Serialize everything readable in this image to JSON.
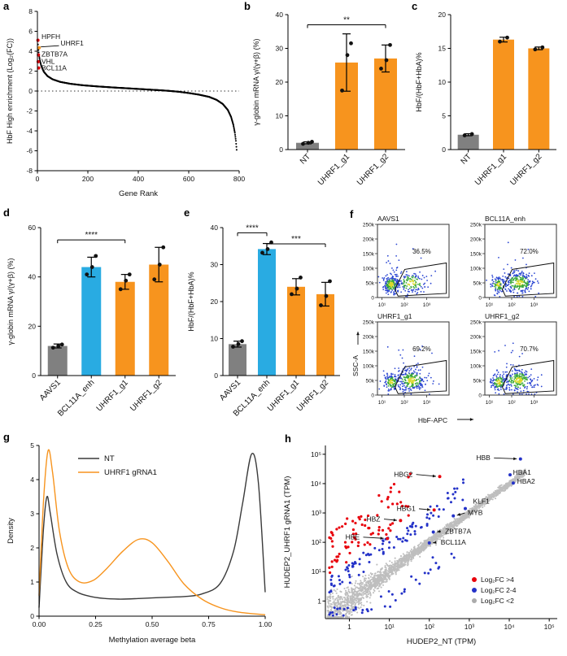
{
  "panel_letters": {
    "a": "a",
    "b": "b",
    "c": "c",
    "d": "d",
    "e": "e",
    "f": "f",
    "g": "g",
    "h": "h"
  },
  "colors": {
    "orange": "#F7941E",
    "blue_bar": "#29ABE2",
    "gray_bar": "#808080",
    "red_point": "#E8000B",
    "blue_point": "#2432C8",
    "gray_point": "#BEBEBE"
  },
  "chart_data": [
    {
      "id": "a",
      "type": "scatter",
      "subtype": "gene-rank",
      "xlabel": "Gene Rank",
      "ylabel": "HbF High enrichment (Log₂(FC))",
      "xlim": [
        0,
        800
      ],
      "ylim": [
        -8,
        8
      ],
      "xticks": [
        0,
        200,
        400,
        600,
        800
      ],
      "yticks": [
        -8,
        -6,
        -4,
        -2,
        0,
        2,
        4,
        6,
        8
      ],
      "zero_line": 0,
      "n_genes": 790,
      "curve_points": [
        [
          1,
          5.0
        ],
        [
          3,
          4.35
        ],
        [
          6,
          3.65
        ],
        [
          10,
          3.05
        ],
        [
          15,
          2.55
        ],
        [
          25,
          1.95
        ],
        [
          40,
          1.5
        ],
        [
          60,
          1.18
        ],
        [
          90,
          0.92
        ],
        [
          130,
          0.73
        ],
        [
          180,
          0.58
        ],
        [
          240,
          0.46
        ],
        [
          300,
          0.36
        ],
        [
          360,
          0.27
        ],
        [
          420,
          0.18
        ],
        [
          480,
          0.09
        ],
        [
          520,
          0.02
        ],
        [
          560,
          -0.07
        ],
        [
          600,
          -0.2
        ],
        [
          640,
          -0.36
        ],
        [
          680,
          -0.58
        ],
        [
          710,
          -0.88
        ],
        [
          735,
          -1.3
        ],
        [
          755,
          -1.9
        ],
        [
          768,
          -2.6
        ],
        [
          777,
          -3.4
        ],
        [
          783,
          -4.2
        ],
        [
          787,
          -5.0
        ],
        [
          790,
          -5.9
        ]
      ],
      "highlight_genes": [
        {
          "label": "HPFH",
          "x": 2,
          "y": 5.1,
          "label_x": 16,
          "label_y": 5.45,
          "color": "#E8000B",
          "leader": false
        },
        {
          "label": "UHRF1",
          "x": 7,
          "y": 4.35,
          "label_x": 92,
          "label_y": 4.8,
          "color": "#F7941E",
          "leader": true
        },
        {
          "label": "ZBTB7A",
          "x": 4,
          "y": 3.62,
          "label_x": 16,
          "label_y": 3.72,
          "color": "#E8000B",
          "leader": false
        },
        {
          "label": "VHL",
          "x": 3,
          "y": 2.95,
          "label_x": 16,
          "label_y": 3.0,
          "color": "#E8000B",
          "leader": false
        },
        {
          "label": "BCL11A",
          "x": 5,
          "y": 2.32,
          "label_x": 16,
          "label_y": 2.32,
          "color": "#E8000B",
          "leader": false
        }
      ]
    },
    {
      "id": "b",
      "type": "bar",
      "ylabel": "γ-globin mRNA γ/(γ+β) (%)",
      "ylim": [
        0,
        40
      ],
      "yticks": [
        0,
        10,
        20,
        30,
        40
      ],
      "categories": [
        "NT",
        "UHRF1_g1",
        "UHRF1_g2"
      ],
      "values": [
        2.0,
        25.8,
        27.0
      ],
      "errors": [
        0.3,
        8.5,
        4.0
      ],
      "bar_colors": [
        "gray_bar",
        "orange",
        "orange"
      ],
      "points": [
        [
          1.7,
          2.0,
          2.3
        ],
        [
          17.5,
          28.0,
          31.5
        ],
        [
          24.0,
          26.5,
          31.0
        ]
      ],
      "sig": [
        {
          "from": 0,
          "to": 2,
          "y": 37,
          "label": "**"
        }
      ]
    },
    {
      "id": "c",
      "type": "bar",
      "ylabel": "HbF/(HbF+HbA)%",
      "ylim": [
        0,
        20
      ],
      "yticks": [
        0,
        5,
        10,
        15,
        20
      ],
      "categories": [
        "NT",
        "UHRF1_g1",
        "UHRF1_g2"
      ],
      "values": [
        2.2,
        16.3,
        15.0
      ],
      "errors": [
        0.15,
        0.35,
        0.2
      ],
      "bar_colors": [
        "gray_bar",
        "orange",
        "orange"
      ],
      "points": [
        [
          2.1,
          2.3
        ],
        [
          16.0,
          16.6
        ],
        [
          14.85,
          15.15
        ]
      ],
      "sig": []
    },
    {
      "id": "d",
      "type": "bar",
      "ylabel": "γ-globin mRNA γ/(γ+β) (%)",
      "ylim": [
        0,
        60
      ],
      "yticks": [
        0,
        20,
        40,
        60
      ],
      "categories": [
        "AAVS1",
        "BCL11A_enh",
        "UHRF1_g1",
        "UHRF1_g2"
      ],
      "values": [
        12.0,
        44.0,
        38.0,
        45.0
      ],
      "errors": [
        0.8,
        4.0,
        3.0,
        7.0
      ],
      "bar_colors": [
        "gray_bar",
        "blue_bar",
        "orange",
        "orange"
      ],
      "points": [
        [
          11.3,
          12.0,
          12.6
        ],
        [
          41.0,
          44.0,
          48.5
        ],
        [
          35.0,
          38.5,
          41.0
        ],
        [
          39.0,
          45.0,
          52.0
        ]
      ],
      "sig": [
        {
          "from": 0,
          "to": 2,
          "y": 55,
          "label": "****"
        }
      ]
    },
    {
      "id": "e",
      "type": "bar",
      "ylabel": "HbF/(HbF+HbA)%",
      "ylim": [
        0,
        40
      ],
      "yticks": [
        0,
        10,
        20,
        30,
        40
      ],
      "categories": [
        "AAVS1",
        "BCL11A_enh",
        "UHRF1_g1",
        "UHRF1_g2"
      ],
      "values": [
        8.5,
        34.2,
        24.0,
        22.0
      ],
      "errors": [
        0.8,
        1.5,
        2.2,
        3.2
      ],
      "bar_colors": [
        "gray_bar",
        "blue_bar",
        "orange",
        "orange"
      ],
      "points": [
        [
          7.8,
          8.5,
          9.3
        ],
        [
          33.2,
          34.2,
          36.0
        ],
        [
          22.0,
          23.5,
          26.5
        ],
        [
          19.0,
          21.5,
          25.5
        ]
      ],
      "sig": [
        {
          "from": 0,
          "to": 1,
          "y": 38.6,
          "label": "****"
        },
        {
          "from": 1,
          "to": 3,
          "y": 35.6,
          "label": "***"
        }
      ]
    },
    {
      "id": "f",
      "type": "flow",
      "xlabel": "HbF-APC",
      "ylabel": "SSC-A",
      "xlog_range": [
        0.8,
        4.0
      ],
      "xticks": [
        {
          "v": 1,
          "label": "10¹"
        },
        {
          "v": 2,
          "label": "10²"
        },
        {
          "v": 3,
          "label": "10³"
        }
      ],
      "ylim": [
        0,
        250000
      ],
      "yticks": [
        {
          "v": 0,
          "label": "0"
        },
        {
          "v": 50000,
          "label": "50k"
        },
        {
          "v": 100000,
          "label": "100k"
        },
        {
          "v": 150000,
          "label": "150k"
        },
        {
          "v": 200000,
          "label": "200k"
        },
        {
          "v": 250000,
          "label": "250k"
        }
      ],
      "gate": [
        [
          1.72,
          5000
        ],
        [
          3.88,
          14000
        ],
        [
          3.88,
          118000
        ],
        [
          2.02,
          96000
        ],
        [
          1.58,
          28000
        ]
      ],
      "flow_colors": {
        "core": "#d9d92c",
        "mid": "#3aa83a",
        "outer": "#2b46d2"
      },
      "plots": [
        {
          "title": "AAVS1",
          "pct": "36.5%",
          "pct_pos": [
            2.78,
            150000
          ],
          "positive_frac": 0.365,
          "seed": 11
        },
        {
          "title": "BCL11A_enh",
          "pct": "72.0%",
          "pct_pos": [
            2.78,
            150000
          ],
          "positive_frac": 0.72,
          "seed": 22
        },
        {
          "title": "UHRF1_g1",
          "pct": "69.2%",
          "pct_pos": [
            2.78,
            150000
          ],
          "positive_frac": 0.692,
          "seed": 33
        },
        {
          "title": "UHRF1_g2",
          "pct": "70.7%",
          "pct_pos": [
            2.78,
            150000
          ],
          "positive_frac": 0.707,
          "seed": 44
        }
      ]
    },
    {
      "id": "g",
      "type": "density",
      "xlabel": "Methylation average beta",
      "ylabel": "Density",
      "xlim": [
        0,
        1
      ],
      "ylim": [
        0,
        5
      ],
      "yticks": [
        0,
        1,
        2,
        3,
        4,
        5
      ],
      "xticks": [
        {
          "v": 0,
          "label": "0.00"
        },
        {
          "v": 0.25,
          "label": "0.25"
        },
        {
          "v": 0.5,
          "label": "0.50"
        },
        {
          "v": 0.75,
          "label": "0.75"
        },
        {
          "v": 1,
          "label": "1.00"
        }
      ],
      "series": [
        {
          "name": "NT",
          "color": "#3A3A3A",
          "points": [
            [
              0,
              0.25
            ],
            [
              0.02,
              2.6
            ],
            [
              0.035,
              3.5
            ],
            [
              0.05,
              3.0
            ],
            [
              0.08,
              1.8
            ],
            [
              0.12,
              1.0
            ],
            [
              0.17,
              0.7
            ],
            [
              0.25,
              0.55
            ],
            [
              0.35,
              0.5
            ],
            [
              0.45,
              0.52
            ],
            [
              0.55,
              0.55
            ],
            [
              0.65,
              0.58
            ],
            [
              0.72,
              0.65
            ],
            [
              0.8,
              0.95
            ],
            [
              0.86,
              1.9
            ],
            [
              0.9,
              3.3
            ],
            [
              0.94,
              4.75
            ],
            [
              0.97,
              3.9
            ],
            [
              1.0,
              0.7
            ]
          ]
        },
        {
          "name": "UHRF1 gRNA1",
          "color": "#F7941E",
          "points": [
            [
              0,
              0.6
            ],
            [
              0.02,
              3.4
            ],
            [
              0.04,
              4.85
            ],
            [
              0.06,
              4.2
            ],
            [
              0.09,
              2.5
            ],
            [
              0.13,
              1.4
            ],
            [
              0.18,
              1.0
            ],
            [
              0.24,
              1.05
            ],
            [
              0.3,
              1.4
            ],
            [
              0.37,
              1.9
            ],
            [
              0.44,
              2.25
            ],
            [
              0.5,
              2.15
            ],
            [
              0.57,
              1.6
            ],
            [
              0.64,
              0.95
            ],
            [
              0.72,
              0.5
            ],
            [
              0.8,
              0.25
            ],
            [
              0.88,
              0.12
            ],
            [
              1.0,
              0.04
            ]
          ]
        }
      ]
    },
    {
      "id": "h",
      "type": "scatter-loglog",
      "xlabel": "HUDEP2_NT (TPM)",
      "ylabel": "HUDEP2_UHRF1 gRNA1 (TPM)",
      "log_range": [
        -0.6,
        5.2
      ],
      "ticks": [
        {
          "v": 0,
          "label": "1"
        },
        {
          "v": 1,
          "label": "10¹"
        },
        {
          "v": 2,
          "label": "10²"
        },
        {
          "v": 3,
          "label": "10³"
        },
        {
          "v": 4,
          "label": "10⁴"
        },
        {
          "v": 5,
          "label": "10⁵"
        }
      ],
      "cloud": {
        "seed": 7,
        "n_gray": 2600,
        "n_blue": 140,
        "n_red": 80
      },
      "legend": [
        {
          "label": "Log₂FC >4",
          "color": "#E8000B"
        },
        {
          "label": "Log₂FC 2-4",
          "color": "#2432C8"
        },
        {
          "label": "Log₂FC <2",
          "color": "#ABABAB"
        }
      ],
      "genes": [
        {
          "name": "HBB",
          "label_pos": [
            3.35,
            4.88
          ],
          "point": [
            4.28,
            4.84
          ],
          "color": "#2432C8"
        },
        {
          "name": "HBA1",
          "label_pos": [
            4.32,
            4.38
          ],
          "point": [
            4.02,
            4.3
          ],
          "color": "#2432C8"
        },
        {
          "name": "HBA2",
          "label_pos": [
            4.42,
            4.08
          ],
          "point": [
            4.1,
            4.02
          ],
          "color": "#2432C8"
        },
        {
          "name": "HBG2",
          "label_pos": [
            1.35,
            4.32
          ],
          "point": [
            2.26,
            4.24
          ],
          "color": "#E8000B"
        },
        {
          "name": "HBG1",
          "label_pos": [
            1.42,
            3.15
          ],
          "point": [
            2.12,
            3.1
          ],
          "color": "#E8000B"
        },
        {
          "name": "HBZ",
          "label_pos": [
            0.6,
            2.8
          ],
          "point": [
            1.28,
            2.74
          ],
          "color": "#E8000B"
        },
        {
          "name": "HBE",
          "label_pos": [
            0.08,
            2.18
          ],
          "point": [
            0.95,
            2.13
          ],
          "color": "#E8000B"
        },
        {
          "name": "KLF1",
          "label_pos": [
            3.3,
            3.4
          ],
          "point": [
            2.9,
            3.15
          ],
          "color": "#2432C8"
        },
        {
          "name": "MYB",
          "label_pos": [
            3.15,
            3.02
          ],
          "point": [
            2.6,
            2.9
          ],
          "color": "#2432C8"
        },
        {
          "name": "ZBTB7A",
          "label_pos": [
            2.72,
            2.38
          ],
          "point": [
            2.1,
            2.35
          ],
          "color": "#2432C8"
        },
        {
          "name": "BCL11A",
          "label_pos": [
            2.6,
            2.0
          ],
          "point": [
            2.0,
            1.98
          ],
          "color": "#2432C8"
        }
      ]
    }
  ]
}
